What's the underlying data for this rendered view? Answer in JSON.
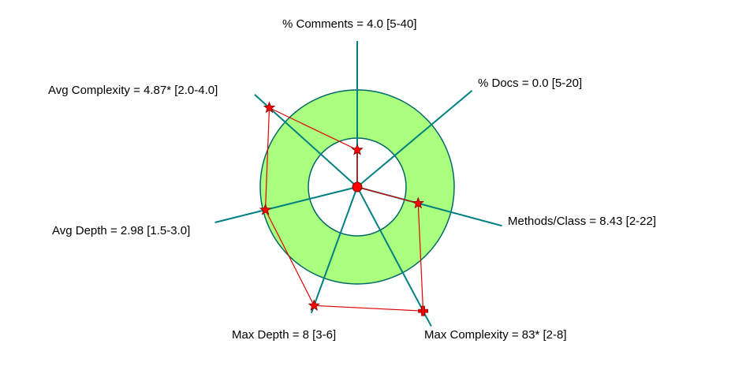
{
  "chart_data": {
    "type": "kiviat",
    "axes": [
      {
        "label": "% Comments = 4.0 [5-40]",
        "metric": "% Comments",
        "value": 4.0,
        "range": [
          5,
          40
        ]
      },
      {
        "label": "% Docs = 0.0 [5-20]",
        "metric": "% Docs",
        "value": 0.0,
        "range": [
          5,
          20
        ]
      },
      {
        "label": "Methods/Class = 8.43 [2-22]",
        "metric": "Methods/Class",
        "value": 8.43,
        "range": [
          2,
          22
        ]
      },
      {
        "label": "Max Complexity = 83* [2-8]",
        "metric": "Max Complexity",
        "value": 83,
        "flagged": true,
        "range": [
          2,
          8
        ]
      },
      {
        "label": "Max Depth = 8 [3-6]",
        "metric": "Max Depth",
        "value": 8,
        "range": [
          3,
          6
        ]
      },
      {
        "label": "Avg Depth = 2.98 [1.5-3.0]",
        "metric": "Avg Depth",
        "value": 2.98,
        "range": [
          1.5,
          3.0
        ]
      },
      {
        "label": "Avg Complexity = 4.87* [2.0-4.0]",
        "metric": "Avg Complexity",
        "value": 4.87,
        "flagged": true,
        "range": [
          2.0,
          4.0
        ]
      }
    ],
    "normal_band_color": "#aaff7f",
    "band_border_color": "#006868",
    "axis_color": "#008080",
    "polygon_color": "#e00000",
    "marker_color": "#ff0000"
  }
}
